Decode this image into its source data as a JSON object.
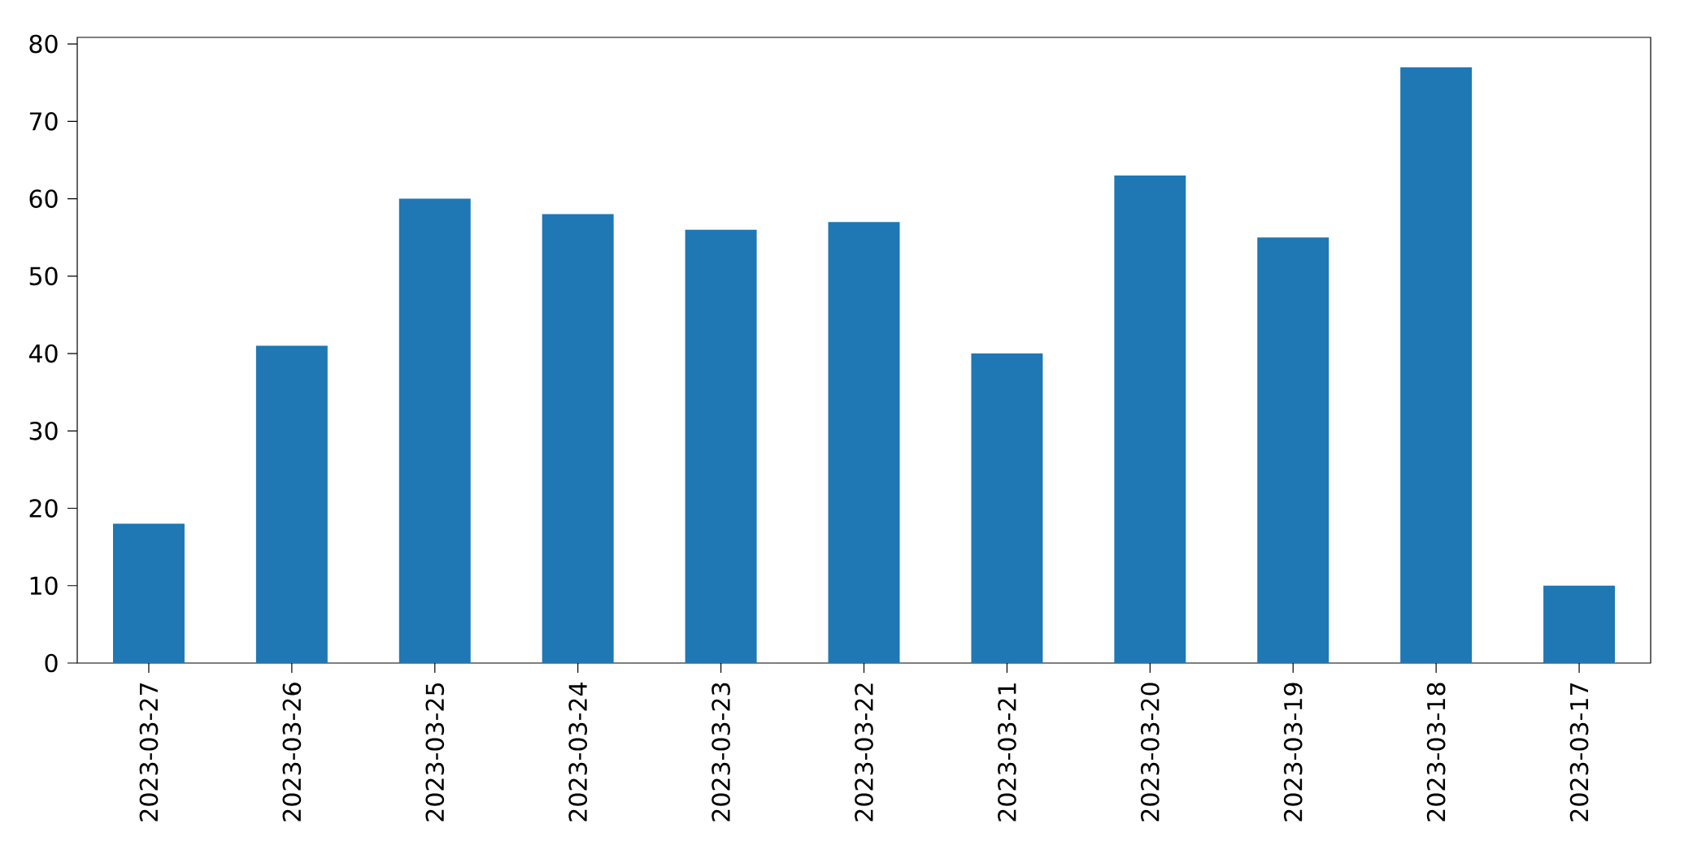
{
  "chart_data": {
    "type": "bar",
    "categories": [
      "2023-03-27",
      "2023-03-26",
      "2023-03-25",
      "2023-03-24",
      "2023-03-23",
      "2023-03-22",
      "2023-03-21",
      "2023-03-20",
      "2023-03-19",
      "2023-03-18",
      "2023-03-17"
    ],
    "values": [
      18,
      41,
      60,
      58,
      56,
      57,
      40,
      63,
      55,
      77,
      10
    ],
    "color": "#1f77b4",
    "ylim": [
      0,
      80.85
    ],
    "yticks": [
      0,
      10,
      20,
      30,
      40,
      50,
      60,
      70,
      80
    ]
  }
}
